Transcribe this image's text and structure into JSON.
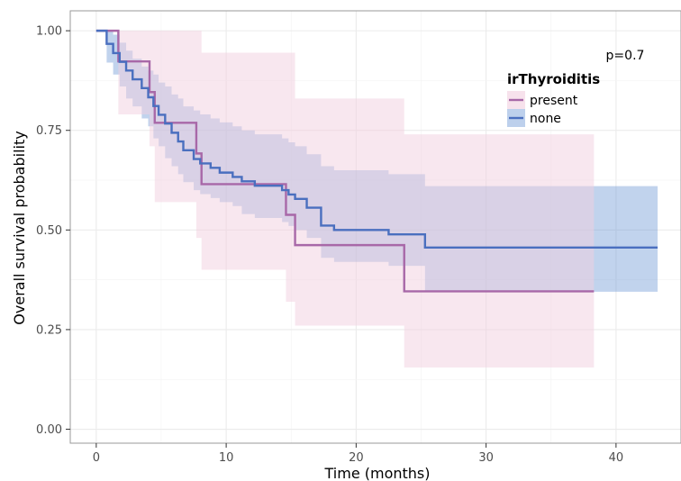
{
  "chart_data": {
    "type": "line",
    "step": true,
    "xlabel": "Time (months)",
    "ylabel": "Overall survival probability",
    "xlim": [
      -2,
      45
    ],
    "ylim": [
      -0.035,
      1.05
    ],
    "xticks": [
      0,
      10,
      20,
      30,
      40
    ],
    "yticks": [
      0,
      0.25,
      0.5,
      0.75,
      1
    ],
    "ytick_labels": [
      "0.00",
      "0.25",
      "0.50",
      "0.75",
      "1.00"
    ],
    "grid": true,
    "legend": {
      "title": "irThyroiditis",
      "position": "top-right"
    },
    "annotation": "p=0.7",
    "series": [
      {
        "name": "none",
        "color": "#4a6fbf",
        "ci_color": "#6c97d4",
        "x": [
          0,
          0.8,
          1.3,
          1.8,
          2.3,
          2.8,
          3.5,
          4.0,
          4.4,
          4.8,
          5.3,
          5.8,
          6.3,
          6.7,
          7.5,
          8.0,
          8.8,
          9.5,
          10.5,
          11.2,
          12.2,
          14.3,
          14.8,
          15.3,
          16.2,
          17.3,
          18.3,
          22.5,
          25.3,
          43.2
        ],
        "y": [
          1.0,
          0.967,
          0.944,
          0.922,
          0.9,
          0.878,
          0.856,
          0.833,
          0.811,
          0.789,
          0.767,
          0.744,
          0.722,
          0.7,
          0.678,
          0.667,
          0.656,
          0.644,
          0.633,
          0.622,
          0.611,
          0.6,
          0.589,
          0.578,
          0.556,
          0.511,
          0.5,
          0.489,
          0.456,
          0.456
        ],
        "ci_upper": [
          1.0,
          1.0,
          0.99,
          0.97,
          0.95,
          0.93,
          0.91,
          0.9,
          0.89,
          0.87,
          0.86,
          0.84,
          0.83,
          0.81,
          0.8,
          0.79,
          0.78,
          0.77,
          0.76,
          0.75,
          0.74,
          0.73,
          0.72,
          0.71,
          0.69,
          0.66,
          0.65,
          0.64,
          0.61,
          0.61
        ],
        "ci_lower": [
          1.0,
          0.92,
          0.89,
          0.86,
          0.83,
          0.81,
          0.78,
          0.76,
          0.73,
          0.71,
          0.68,
          0.66,
          0.64,
          0.62,
          0.6,
          0.59,
          0.58,
          0.57,
          0.56,
          0.54,
          0.53,
          0.52,
          0.51,
          0.5,
          0.48,
          0.43,
          0.42,
          0.41,
          0.345,
          0.345
        ]
      },
      {
        "name": "present",
        "color": "#a868a8",
        "ci_color": "#f2cfe0",
        "x": [
          0,
          1.7,
          4.1,
          4.5,
          7.7,
          8.1,
          14.6,
          15.3,
          23.7,
          38.3
        ],
        "y": [
          1.0,
          0.923,
          0.846,
          0.769,
          0.692,
          0.615,
          0.538,
          0.462,
          0.346,
          0.346
        ],
        "ci_upper": [
          1.0,
          1.0,
          1.0,
          1.0,
          1.0,
          0.945,
          0.945,
          0.83,
          0.74,
          0.74
        ],
        "ci_lower": [
          1.0,
          0.79,
          0.71,
          0.57,
          0.48,
          0.4,
          0.32,
          0.26,
          0.155,
          0.155
        ]
      }
    ]
  }
}
